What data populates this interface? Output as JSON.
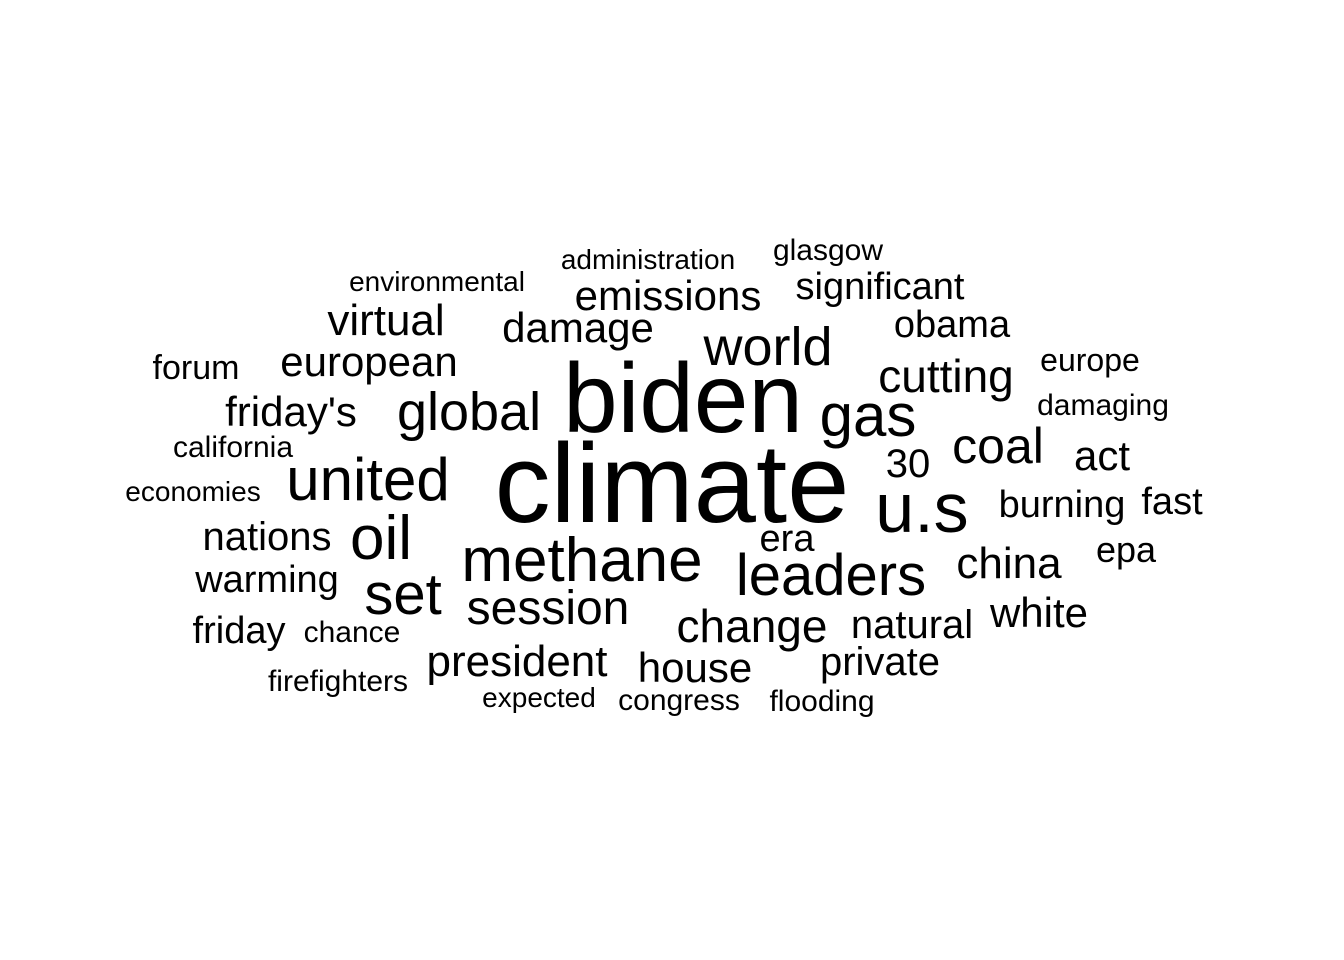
{
  "words": [
    "climate",
    "biden",
    "u.s",
    "methane",
    "leaders",
    "gas",
    "world",
    "global",
    "united",
    "oil",
    "set",
    "session",
    "coal",
    "change",
    "president",
    "house",
    "damage",
    "emissions",
    "european",
    "friday's",
    "cutting",
    "china",
    "white",
    "significant",
    "obama",
    "virtual",
    "burning",
    "30",
    "act",
    "era",
    "natural",
    "private",
    "nations",
    "warming",
    "friday",
    "fast",
    "epa",
    "europe",
    "forum",
    "administration",
    "glasgow",
    "environmental",
    "damaging",
    "california",
    "economies",
    "chance",
    "firefighters",
    "expected",
    "congress",
    "flooding"
  ]
}
